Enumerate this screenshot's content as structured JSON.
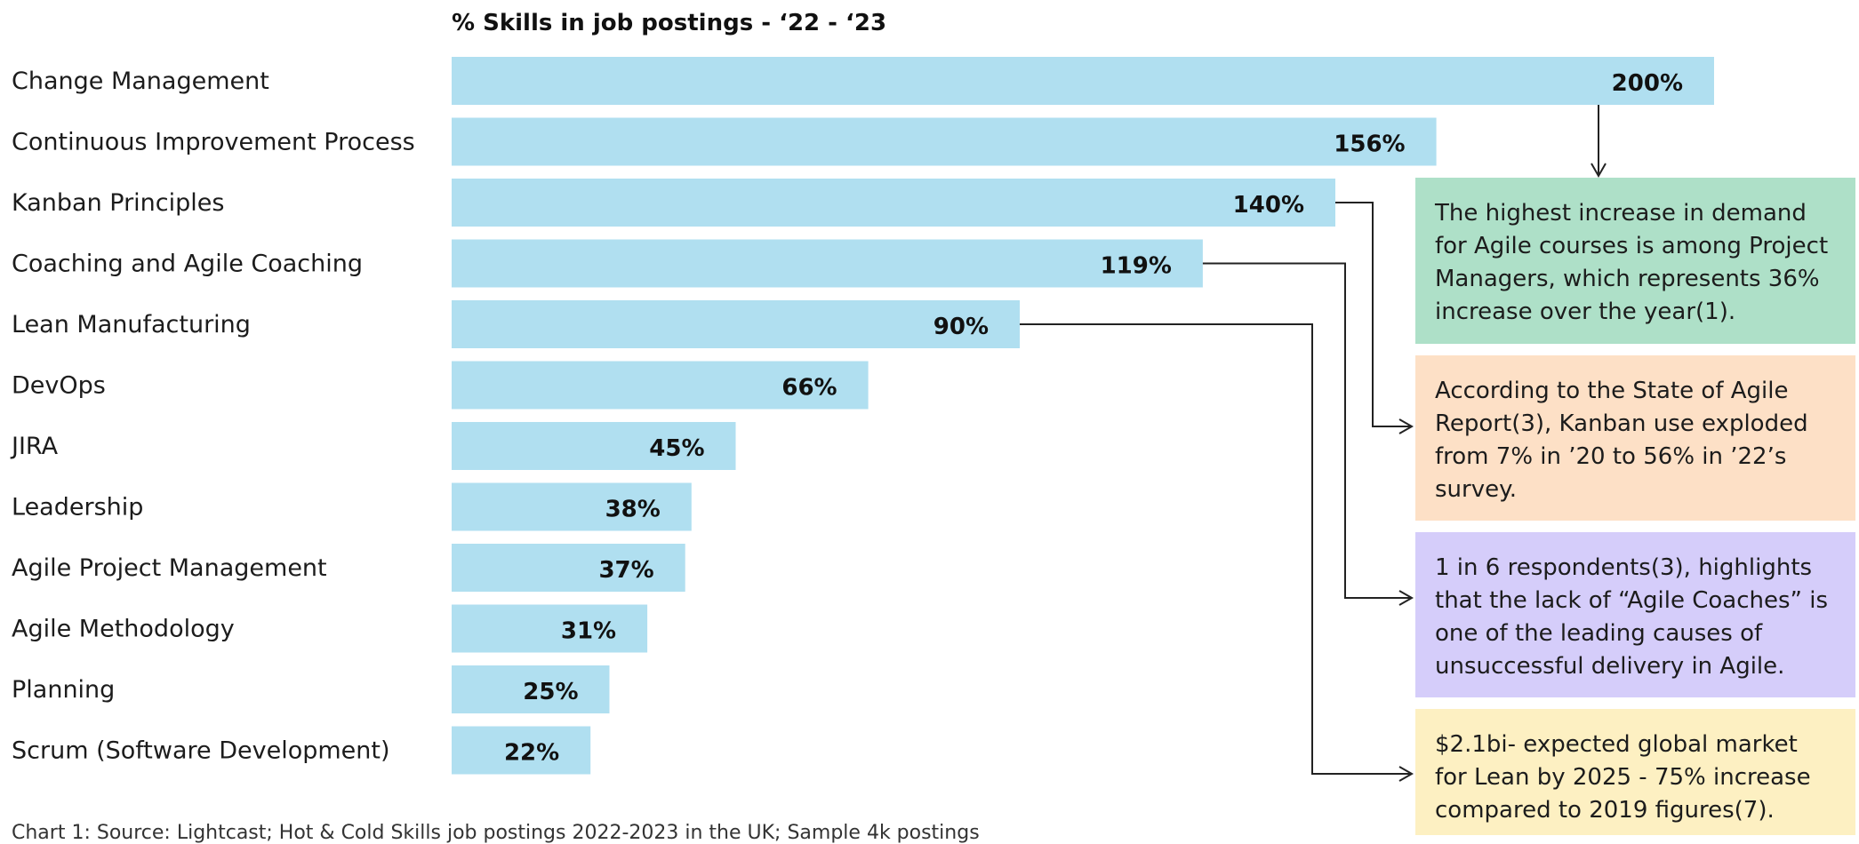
{
  "chart_data": {
    "type": "bar",
    "orientation": "horizontal",
    "title": "% Skills in job postings - ‘22 - ‘23",
    "categories": [
      "Change Management",
      "Continuous Improvement Process",
      "Kanban Principles",
      "Coaching and Agile Coaching",
      "Lean Manufacturing",
      "DevOps",
      "JIRA",
      "Leadership",
      "Agile Project Management",
      "Agile Methodology",
      "Planning",
      "Scrum (Software Development)"
    ],
    "values": [
      200,
      156,
      140,
      119,
      90,
      66,
      45,
      38,
      37,
      31,
      25,
      22
    ],
    "value_labels": [
      "200%",
      "156%",
      "140%",
      "119%",
      "90%",
      "66%",
      "45%",
      "38%",
      "37%",
      "31%",
      "25%",
      "22%"
    ],
    "xlim": [
      0,
      200
    ],
    "grid": false,
    "bar_color": "#b0dff0"
  },
  "annotations": [
    {
      "target": "Change Management",
      "text": "The highest increase in demand for Agile courses is among Project Managers, which represents 36% increase over the year(1).",
      "color": "#aee0c8"
    },
    {
      "target": "Kanban Principles",
      "text": "According to the State of Agile Report(3), Kanban use exploded from 7% in ’20 to 56% in ’22’s survey.",
      "color": "#fde0c6"
    },
    {
      "target": "Coaching and Agile Coaching",
      "text": "1 in 6 respondents(3), highlights that the lack of “Agile Coaches” is one of the leading causes of unsuccessful delivery in Agile.",
      "color": "#d5cdfa"
    },
    {
      "target": "Lean Manufacturing",
      "text": "$2.1bi- expected global market for Lean by 2025 - 75% increase compared to 2019 figures(7).",
      "color": "#fdf0c2"
    }
  ],
  "source": "Chart 1: Source: Lightcast; Hot & Cold Skills job postings 2022-2023 in the UK; Sample 4k postings"
}
